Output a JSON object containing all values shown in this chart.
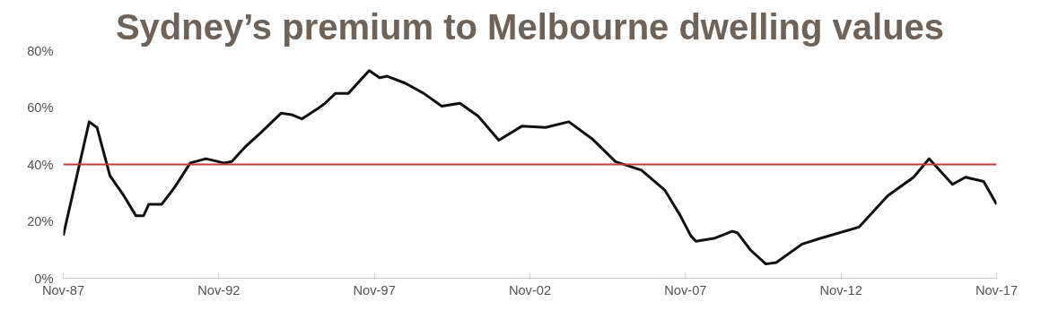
{
  "chart_data": {
    "type": "line",
    "title": "Sydney’s premium to Melbourne dwelling values",
    "x": [
      "1987-11",
      "1988-05",
      "1988-09",
      "1988-12",
      "1989-05",
      "1989-10",
      "1990-03",
      "1990-06",
      "1990-08",
      "1991-01",
      "1991-06",
      "1991-12",
      "1992-06",
      "1993-01",
      "1993-04",
      "1993-09",
      "1994-03",
      "1994-11",
      "1995-03",
      "1995-07",
      "1996-01",
      "1996-04",
      "1996-08",
      "1997-01",
      "1997-09",
      "1998-01",
      "1998-04",
      "1998-11",
      "1999-06",
      "2000-01",
      "2000-08",
      "2001-03",
      "2001-11",
      "2002-08",
      "2003-05",
      "2004-02",
      "2004-11",
      "2005-08",
      "2006-06",
      "2007-03",
      "2007-09",
      "2008-01",
      "2008-03",
      "2008-10",
      "2009-05",
      "2009-07",
      "2009-12",
      "2010-06",
      "2010-10",
      "2011-08",
      "2012-03",
      "2013-06",
      "2014-05",
      "2015-03",
      "2015-09",
      "2016-06",
      "2016-11",
      "2017-06",
      "2017-11"
    ],
    "series": [
      {
        "color": "#111111",
        "values": [
          15,
          39,
          55,
          53,
          36,
          29.5,
          22,
          22,
          26,
          26,
          32,
          40.5,
          42,
          40.5,
          41,
          46,
          51,
          58,
          57.5,
          56,
          59.5,
          61.5,
          65,
          65,
          73,
          70.5,
          71,
          68.5,
          65,
          60.5,
          61.5,
          57,
          48.5,
          53.5,
          53,
          55,
          49,
          41,
          38,
          31,
          22,
          15,
          13,
          14,
          16.5,
          16,
          10,
          5,
          5.5,
          12,
          14,
          18,
          29,
          35.5,
          42,
          33,
          35.5,
          34,
          26
        ]
      }
    ],
    "xlim": [
      "1987-11",
      "2017-11"
    ],
    "xticks": [
      {
        "value": "1987-11",
        "label": "Nov-87"
      },
      {
        "value": "1992-11",
        "label": "Nov-92"
      },
      {
        "value": "1997-11",
        "label": "Nov-97"
      },
      {
        "value": "2002-11",
        "label": "Nov-02"
      },
      {
        "value": "2007-11",
        "label": "Nov-07"
      },
      {
        "value": "2012-11",
        "label": "Nov-12"
      },
      {
        "value": "2017-11",
        "label": "Nov-17"
      }
    ],
    "ylim": [
      0,
      80
    ],
    "yticks": [
      {
        "value": 0,
        "label": "0%"
      },
      {
        "value": 20,
        "label": "20%"
      },
      {
        "value": 40,
        "label": "40%"
      },
      {
        "value": 60,
        "label": "60%"
      },
      {
        "value": 80,
        "label": "80%"
      }
    ],
    "ref_lines": [
      {
        "axis": "y",
        "value": 40,
        "color": "#c8383c"
      }
    ],
    "grid": false,
    "line_style": "solid"
  }
}
